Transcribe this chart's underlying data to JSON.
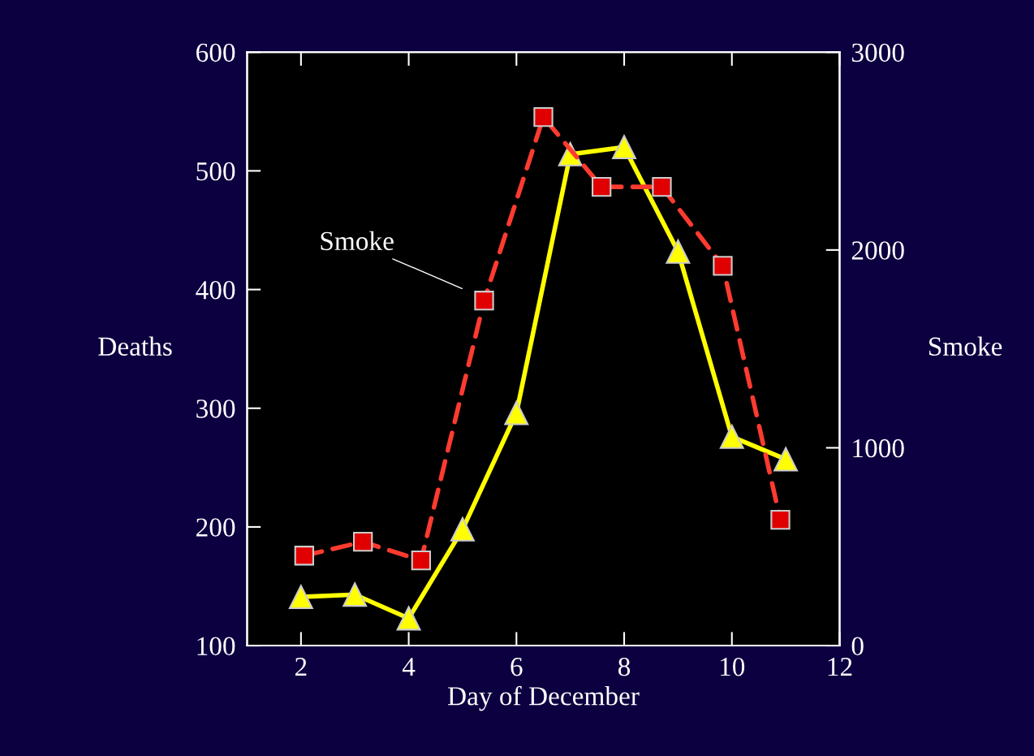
{
  "chart_data": {
    "type": "line",
    "xlabel": "Day of December",
    "ylabel": "Deaths",
    "y2label": "Smoke",
    "xlim": [
      1,
      12
    ],
    "xticks": [
      2,
      4,
      6,
      8,
      10,
      12
    ],
    "ylim": [
      100,
      600
    ],
    "yticks": [
      100,
      200,
      300,
      400,
      500,
      600
    ],
    "y2lim": [
      0,
      3000
    ],
    "y2ticks": [
      0,
      1000,
      2000,
      3000
    ],
    "grid": false,
    "legend": false,
    "series": [
      {
        "color": "#ffff00",
        "marker": "triangle",
        "line_style": "solid",
        "x": [
          2,
          3,
          4,
          5,
          6,
          7,
          8,
          9,
          10,
          11
        ],
        "values": [
          141,
          143,
          123,
          198,
          296,
          514,
          520,
          432,
          276,
          257
        ]
      },
      {
        "name": "Smoke",
        "axis": "y2",
        "color": "#ff3b30",
        "marker": "square",
        "line_style": "dashed",
        "x": [
          2.06,
          3.15,
          4.23,
          5.4,
          6.5,
          7.58,
          8.7,
          9.83,
          10.9
        ],
        "values": [
          455,
          525,
          431,
          1744,
          2672,
          2319,
          2319,
          1920,
          636
        ]
      }
    ]
  }
}
